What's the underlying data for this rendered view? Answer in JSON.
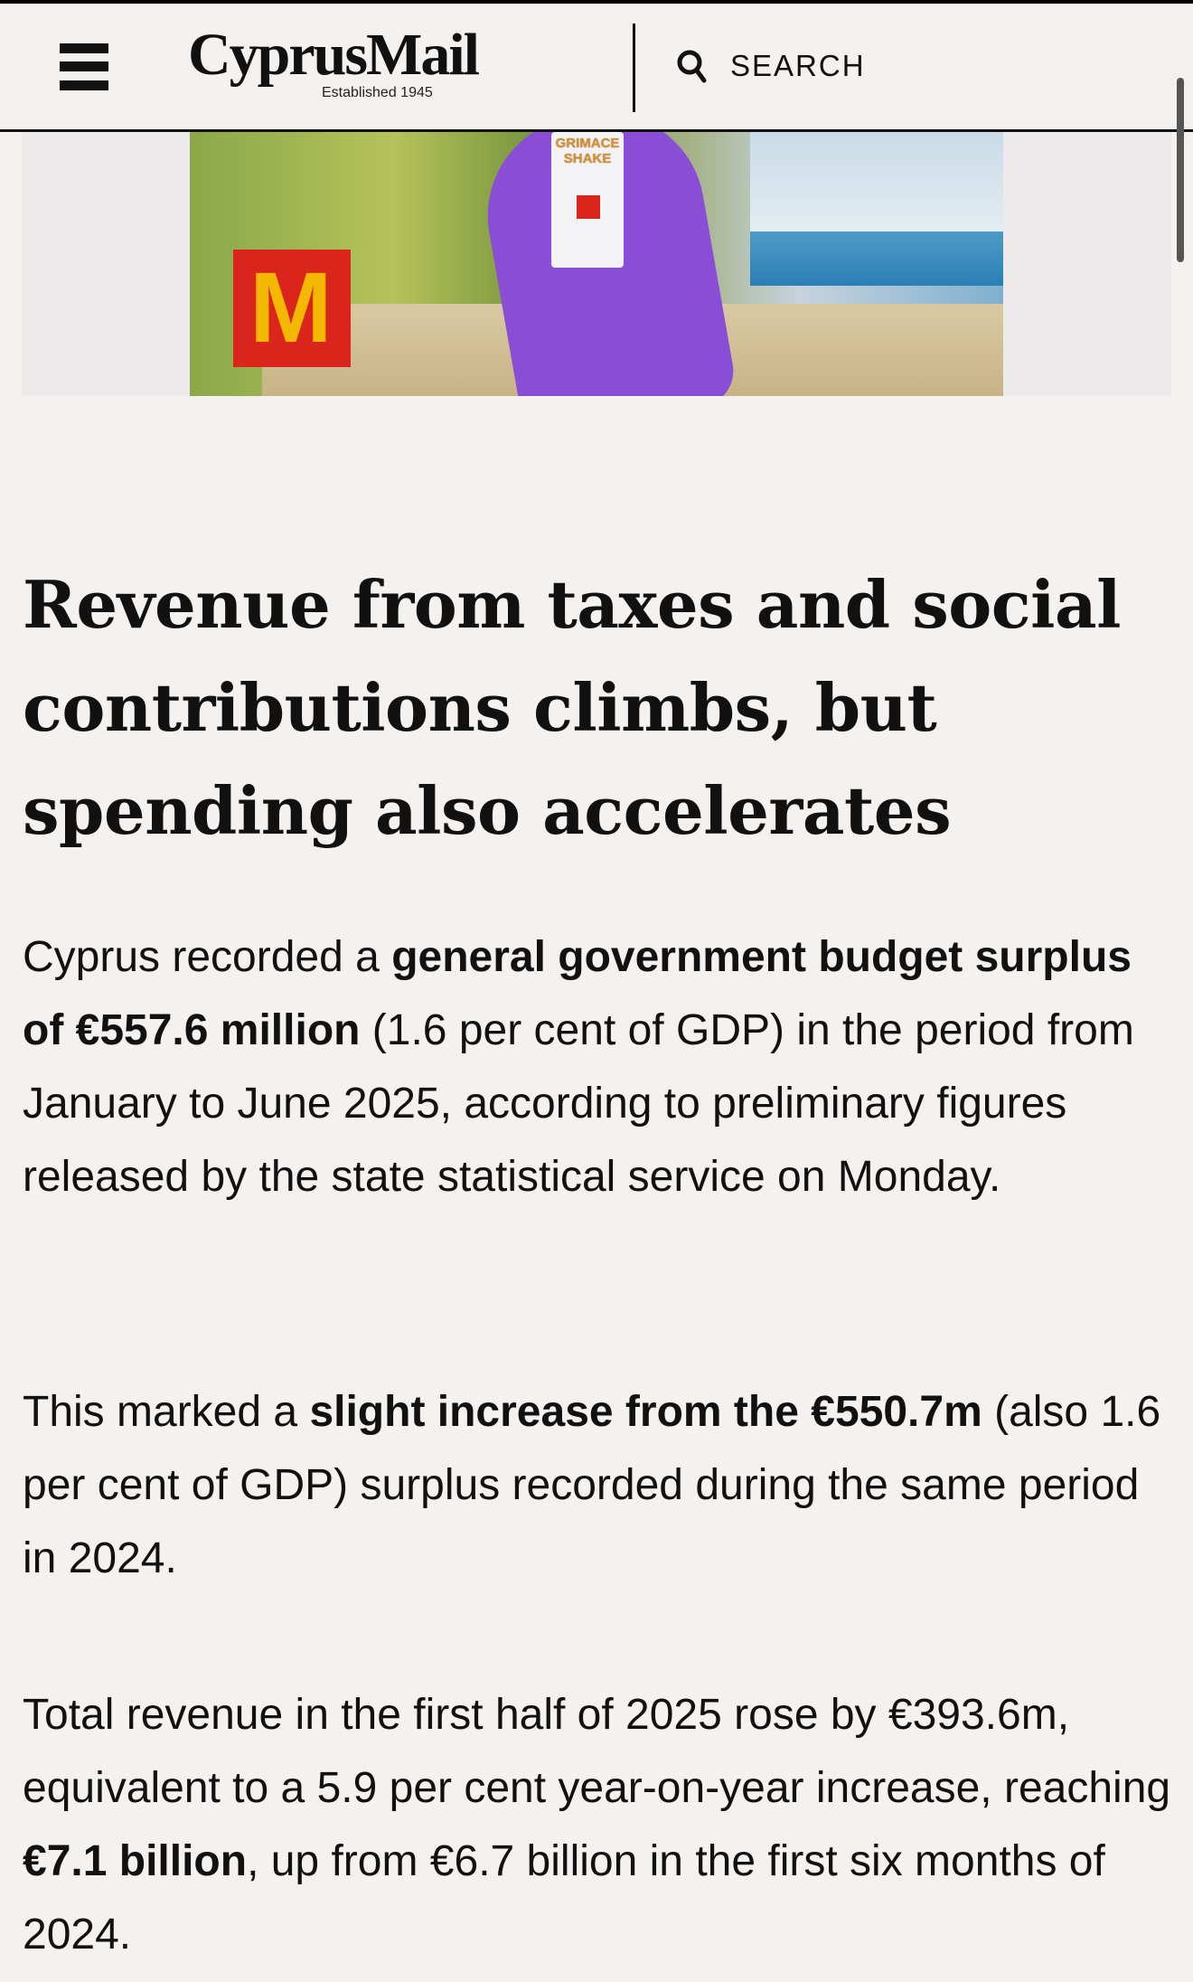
{
  "header": {
    "logo": "CyprusMail",
    "logo_tagline": "Established 1945",
    "search_label": "SEARCH",
    "menu_icon": "hamburger-icon",
    "search_icon": "search-icon"
  },
  "ad": {
    "brand_mark": "M",
    "cup_text": "GRIMACE SHAKE"
  },
  "article": {
    "title": "Revenue from taxes and social contributions climbs, but spending also accelerates",
    "paragraphs": [
      [
        {
          "text": "Cyprus recorded a ",
          "bold": false
        },
        {
          "text": "general government budget surplus of €557.6 million",
          "bold": true
        },
        {
          "text": " (1.6 per cent of GDP) in the period from January to June 2025, according to preliminary figures released by the state statistical service on Monday.",
          "bold": false
        }
      ],
      [
        {
          "text": "This marked a ",
          "bold": false
        },
        {
          "text": "slight increase from the €550.7m",
          "bold": true
        },
        {
          "text": " (also 1.6 per cent of GDP) surplus recorded during the same period in 2024.",
          "bold": false
        }
      ],
      [
        {
          "text": "Total revenue in the first half of 2025 rose by €393.6m, equivalent to a 5.9 per cent year-on-year increase, reaching ",
          "bold": false
        },
        {
          "text": "€7.1 billion",
          "bold": true
        },
        {
          "text": ", up from €6.7 billion in the first six months of 2024.",
          "bold": false
        }
      ]
    ]
  },
  "colors": {
    "background": "#f4f1ef",
    "text": "#111111",
    "ad_red": "#d9251c",
    "ad_purple": "#8a4ed6"
  }
}
